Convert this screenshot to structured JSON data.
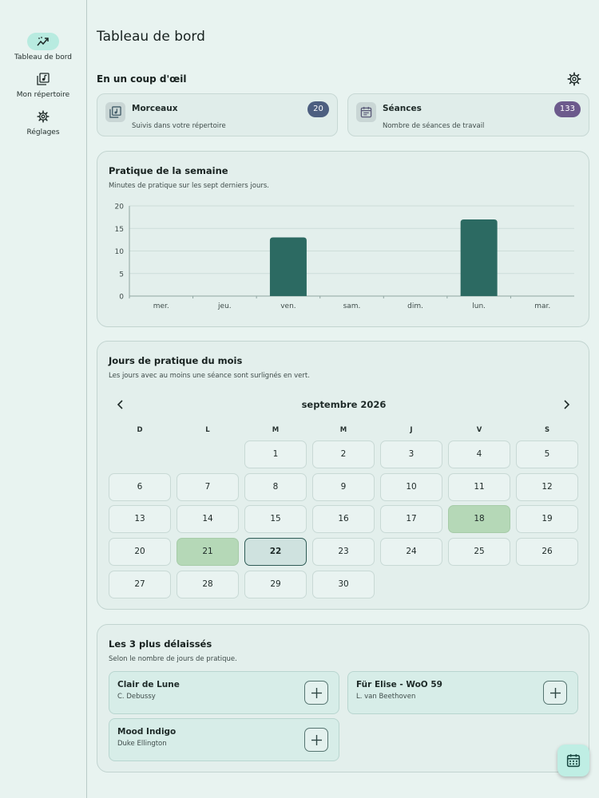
{
  "sidebar": {
    "items": [
      {
        "label": "Tableau de bord",
        "icon": "trending-chart-icon",
        "active": true
      },
      {
        "label": "Mon répertoire",
        "icon": "music-library-icon",
        "active": false
      },
      {
        "label": "Réglages",
        "icon": "gear-icon",
        "active": false
      }
    ]
  },
  "header": {
    "title": "Tableau de bord"
  },
  "overview": {
    "title": "En un coup d'œil",
    "cards": [
      {
        "title": "Morceaux",
        "subtitle": "Suivis dans votre répertoire",
        "count": "20",
        "badge_color": "#4d5f80",
        "icon": "music-library-icon"
      },
      {
        "title": "Séances",
        "subtitle": "Nombre de séances de travail",
        "count": "133",
        "badge_color": "#6c5a8c",
        "icon": "calendar-icon"
      }
    ]
  },
  "weekly": {
    "title": "Pratique de la semaine",
    "subtitle": "Minutes de pratique sur les sept derniers jours."
  },
  "chart_data": {
    "type": "bar",
    "categories": [
      "mer.",
      "jeu.",
      "ven.",
      "sam.",
      "dim.",
      "lun.",
      "mar."
    ],
    "values": [
      0,
      0,
      13,
      0,
      0,
      17,
      0
    ],
    "ylim": [
      0,
      20
    ],
    "yticks": [
      0,
      5,
      10,
      15,
      20
    ],
    "grid": true,
    "bar_color": "#2c6a62"
  },
  "monthly": {
    "title": "Jours de pratique du mois",
    "subtitle": "Les jours avec au moins une séance sont surlignés en vert.",
    "month_label": "septembre 2026",
    "weekdays": [
      "D",
      "L",
      "M",
      "M",
      "J",
      "V",
      "S"
    ],
    "first_weekday_index": 2,
    "days_in_month": 30,
    "practiced_days": [
      18,
      21
    ],
    "today": 22,
    "practiced_color": "#b5d8b7"
  },
  "neglected": {
    "title": "Les 3 plus délaissés",
    "subtitle": "Selon le nombre de jours de pratique.",
    "items": [
      {
        "title": "Clair de Lune",
        "composer": "C. Debussy"
      },
      {
        "title": "Für Elise - WoO 59",
        "composer": "L. van Beethoven"
      },
      {
        "title": "Mood Indigo",
        "composer": "Duke Ellington"
      }
    ]
  },
  "fab": {
    "icon": "calendar-icon"
  }
}
